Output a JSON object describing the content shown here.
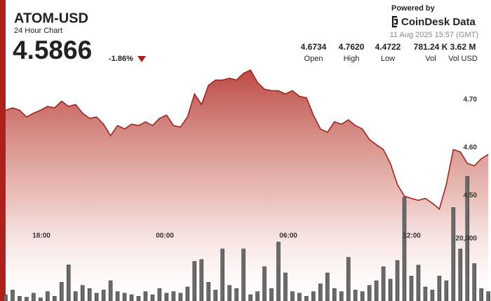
{
  "header": {
    "title": "ATOM-USD",
    "subtitle": "24 Hour Chart",
    "price": "4.5866",
    "change": "-1.86%",
    "powered_by": "Powered by",
    "brand": "CoinDesk Data",
    "timestamp": "11 Aug 2025 15:57 (GMT)",
    "stats": [
      {
        "value": "4.6734",
        "label": "Open"
      },
      {
        "value": "4.7620",
        "label": "High"
      },
      {
        "value": "4.4722",
        "label": "Low"
      },
      {
        "value": "781.24 K",
        "label": "Vol"
      },
      {
        "value": "3.62 M",
        "label": "Vol USD"
      }
    ]
  },
  "chart_data": {
    "type": "area-volume",
    "x": [
      16.26,
      16.6,
      16.94,
      17.28,
      17.62,
      17.96,
      18.3,
      18.64,
      18.98,
      19.32,
      19.66,
      20.0,
      20.34,
      20.68,
      21.02,
      21.36,
      21.7,
      22.04,
      22.38,
      22.72,
      23.06,
      23.4,
      23.74,
      24.08,
      24.42,
      24.76,
      25.1,
      25.44,
      25.78,
      26.12,
      26.46,
      26.8,
      27.14,
      27.48,
      27.82,
      28.16,
      28.5,
      28.84,
      29.18,
      29.52,
      29.86,
      30.2,
      30.54,
      30.88,
      31.22,
      31.56,
      31.9,
      32.24,
      32.58,
      32.92,
      33.26,
      33.6,
      33.94,
      34.28,
      34.62,
      34.96,
      35.3,
      35.64,
      35.98,
      36.32,
      36.66,
      37.0,
      37.34,
      37.68,
      38.02,
      38.36,
      38.7,
      39.04,
      39.38,
      39.72
    ],
    "series": [
      {
        "name": "Price",
        "color": "#a3241c",
        "values": [
          4.678,
          4.683,
          4.678,
          4.664,
          4.672,
          4.678,
          4.686,
          4.683,
          4.697,
          4.686,
          4.69,
          4.672,
          4.661,
          4.664,
          4.649,
          4.625,
          4.646,
          4.639,
          4.649,
          4.646,
          4.654,
          4.646,
          4.661,
          4.668,
          4.646,
          4.643,
          4.664,
          4.712,
          4.69,
          4.73,
          4.741,
          4.741,
          4.745,
          4.741,
          4.755,
          4.762,
          4.736,
          4.722,
          4.719,
          4.719,
          4.712,
          4.719,
          4.707,
          4.704,
          4.668,
          4.639,
          4.632,
          4.654,
          4.649,
          4.658,
          4.646,
          4.639,
          4.617,
          4.606,
          4.596,
          4.567,
          4.523,
          4.499,
          4.494,
          4.49,
          4.494,
          4.484,
          4.472,
          4.523,
          4.596,
          4.591,
          4.567,
          4.562,
          4.577,
          4.586
        ]
      },
      {
        "name": "Volume",
        "color": "#6b6b6b",
        "axis": "y2",
        "values": [
          2000,
          3500,
          1500,
          1200,
          2500,
          1000,
          3000,
          1500,
          6000,
          11600,
          3000,
          5000,
          4000,
          2500,
          3500,
          6500,
          3000,
          2500,
          2000,
          1500,
          3000,
          2000,
          4000,
          2500,
          3000,
          2500,
          4500,
          12700,
          13300,
          6000,
          3500,
          16700,
          5000,
          4000,
          16700,
          2000,
          3000,
          11000,
          4000,
          18900,
          9000,
          3000,
          2500,
          1500,
          3000,
          5500,
          9000,
          4000,
          3000,
          14000,
          3500,
          3000,
          5000,
          6500,
          11000,
          7000,
          13000,
          33300,
          8000,
          11500,
          4500,
          3500,
          8000,
          6500,
          30000,
          16700,
          40000,
          12000,
          4000,
          3000
        ]
      }
    ],
    "xlim": [
      16.26,
      39.85
    ],
    "xticks": [
      {
        "value": 18,
        "label": "18:00"
      },
      {
        "value": 24,
        "label": "00:00"
      },
      {
        "value": 30,
        "label": "06:00"
      },
      {
        "value": 36,
        "label": "12:00"
      }
    ],
    "ylim": [
      4.28,
      4.8
    ],
    "yticks": [
      {
        "value": 4.5,
        "label": "4.50"
      },
      {
        "value": 4.6,
        "label": "4.60"
      },
      {
        "value": 4.7,
        "label": "4.70"
      }
    ],
    "y2lim": [
      0,
      80000
    ],
    "y2ticks": [
      {
        "value": 20000,
        "label": "20,000"
      }
    ]
  }
}
